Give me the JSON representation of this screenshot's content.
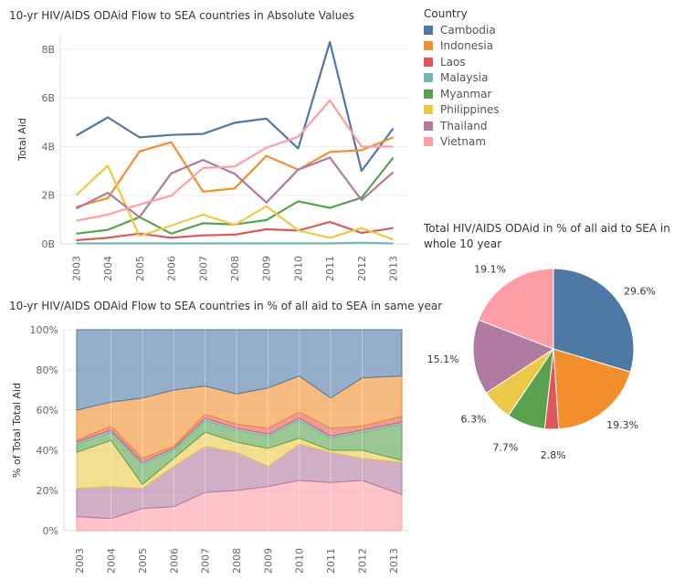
{
  "line_title": "10-yr HIV/AIDS ODAid Flow to SEA countries in Absolute Values",
  "area_title": "10-yr HIV/AIDS ODAid Flow to SEA countries in % of all aid to SEA in same year",
  "pie_title": "Total HIV/AIDS ODAid in % of all aid to SEA in whole 10 year",
  "legend": {
    "title": "Country",
    "items": [
      {
        "label": "Cambodia",
        "color": "#4e79a7"
      },
      {
        "label": "Indonesia",
        "color": "#f28e2b"
      },
      {
        "label": "Laos",
        "color": "#e15759"
      },
      {
        "label": "Malaysia",
        "color": "#76b7b2"
      },
      {
        "label": "Myanmar",
        "color": "#59a14f"
      },
      {
        "label": "Philippines",
        "color": "#edc948"
      },
      {
        "label": "Thailand",
        "color": "#b07aa1"
      },
      {
        "label": "Vietnam",
        "color": "#ff9da7"
      }
    ]
  },
  "chart_data": [
    {
      "type": "line",
      "title": "10-yr HIV/AIDS ODAid Flow to SEA countries in Absolute Values",
      "ylabel": "Total Aid",
      "x": [
        "2003",
        "2004",
        "2005",
        "2006",
        "2007",
        "2008",
        "2009",
        "2010",
        "2011",
        "2012",
        "2013"
      ],
      "ylim": [
        0,
        8.6
      ],
      "yticks": [
        {
          "v": 0,
          "label": "0B"
        },
        {
          "v": 2,
          "label": "2B"
        },
        {
          "v": 4,
          "label": "4B"
        },
        {
          "v": 6,
          "label": "6B"
        },
        {
          "v": 8,
          "label": "8B"
        }
      ],
      "series": [
        {
          "name": "Cambodia",
          "color": "#4e79a7",
          "values": [
            4.45,
            5.2,
            4.38,
            4.48,
            4.52,
            4.98,
            5.15,
            3.92,
            8.3,
            3.0,
            4.75
          ]
        },
        {
          "name": "Indonesia",
          "color": "#f28e2b",
          "values": [
            1.52,
            1.88,
            3.8,
            4.18,
            2.15,
            2.28,
            3.62,
            3.05,
            3.78,
            3.85,
            4.38
          ]
        },
        {
          "name": "Laos",
          "color": "#e15759",
          "values": [
            0.15,
            0.25,
            0.42,
            0.25,
            0.35,
            0.38,
            0.6,
            0.55,
            0.9,
            0.45,
            0.65
          ]
        },
        {
          "name": "Malaysia",
          "color": "#76b7b2",
          "values": [
            0.02,
            0.02,
            0.02,
            0.02,
            0.02,
            0.02,
            0.02,
            0.02,
            0.02,
            0.05,
            0.02
          ]
        },
        {
          "name": "Myanmar",
          "color": "#59a14f",
          "values": [
            0.42,
            0.58,
            1.1,
            0.42,
            0.85,
            0.8,
            0.98,
            1.75,
            1.48,
            1.9,
            3.55
          ]
        },
        {
          "name": "Philippines",
          "color": "#edc948",
          "values": [
            2.0,
            3.22,
            0.32,
            0.75,
            1.2,
            0.78,
            1.55,
            0.55,
            0.25,
            0.65,
            0.18
          ]
        },
        {
          "name": "Thailand",
          "color": "#b07aa1",
          "values": [
            1.45,
            2.1,
            1.1,
            2.9,
            3.45,
            2.88,
            1.7,
            3.05,
            3.55,
            1.8,
            2.95
          ]
        },
        {
          "name": "Vietnam",
          "color": "#ff9da7",
          "values": [
            0.95,
            1.2,
            1.62,
            1.98,
            3.12,
            3.18,
            3.95,
            4.4,
            5.9,
            4.0,
            4.0
          ]
        }
      ]
    },
    {
      "type": "area",
      "title": "10-yr HIV/AIDS ODAid Flow to SEA countries in % of all aid to SEA in same year",
      "ylabel": "% of Total Total Aid",
      "x": [
        "2003",
        "2004",
        "2005",
        "2006",
        "2007",
        "2008",
        "2009",
        "2010",
        "2011",
        "2012",
        "2013"
      ],
      "ylim": [
        0,
        100
      ],
      "yticks": [
        {
          "v": 0,
          "label": "0%"
        },
        {
          "v": 20,
          "label": "20%"
        },
        {
          "v": 40,
          "label": "40%"
        },
        {
          "v": 60,
          "label": "60%"
        },
        {
          "v": 80,
          "label": "80%"
        },
        {
          "v": 100,
          "label": "100%"
        }
      ],
      "stack_order": [
        "Vietnam",
        "Thailand",
        "Philippines",
        "Myanmar",
        "Malaysia",
        "Laos",
        "Indonesia",
        "Cambodia"
      ],
      "series": [
        {
          "name": "Vietnam",
          "color": "#ff9da7",
          "values": [
            7,
            6,
            11,
            12,
            19,
            20,
            22,
            25,
            24,
            25,
            18
          ]
        },
        {
          "name": "Thailand",
          "color": "#b07aa1",
          "values": [
            14,
            16,
            10,
            20,
            23,
            19,
            10,
            18,
            15,
            11,
            16
          ]
        },
        {
          "name": "Philippines",
          "color": "#edc948",
          "values": [
            18,
            23,
            2,
            4,
            7,
            5,
            9,
            3,
            1,
            4,
            1
          ]
        },
        {
          "name": "Myanmar",
          "color": "#59a14f",
          "values": [
            4,
            4,
            10,
            4,
            6,
            6,
            6,
            9,
            6,
            9,
            18
          ]
        },
        {
          "name": "Malaysia",
          "color": "#76b7b2",
          "values": [
            1,
            1,
            1,
            1,
            1,
            1,
            1,
            1,
            1,
            1,
            1
          ]
        },
        {
          "name": "Laos",
          "color": "#e15759",
          "values": [
            1,
            2,
            2,
            1,
            2,
            2,
            3,
            3,
            4,
            2,
            3
          ]
        },
        {
          "name": "Indonesia",
          "color": "#f28e2b",
          "values": [
            15,
            12,
            30,
            28,
            14,
            15,
            20,
            18,
            15,
            24,
            20
          ]
        },
        {
          "name": "Cambodia",
          "color": "#4e79a7",
          "values": [
            40,
            36,
            34,
            30,
            28,
            32,
            29,
            23,
            34,
            24,
            23
          ]
        }
      ]
    },
    {
      "type": "pie",
      "title": "Total HIV/AIDS ODAid in % of all aid to SEA in whole 10 year",
      "slices": [
        {
          "name": "Cambodia",
          "color": "#4e79a7",
          "value": 29.6,
          "label": "29.6%"
        },
        {
          "name": "Indonesia",
          "color": "#f28e2b",
          "value": 19.3,
          "label": "19.3%"
        },
        {
          "name": "Laos",
          "color": "#e15759",
          "value": 2.8,
          "label": "2.8%"
        },
        {
          "name": "Myanmar",
          "color": "#59a14f",
          "value": 7.7,
          "label": "7.7%"
        },
        {
          "name": "Philippines",
          "color": "#edc948",
          "value": 6.3,
          "label": "6.3%"
        },
        {
          "name": "Thailand",
          "color": "#b07aa1",
          "value": 15.1,
          "label": "15.1%"
        },
        {
          "name": "Vietnam",
          "color": "#ff9da7",
          "value": 19.1,
          "label": "19.1%"
        }
      ]
    }
  ]
}
